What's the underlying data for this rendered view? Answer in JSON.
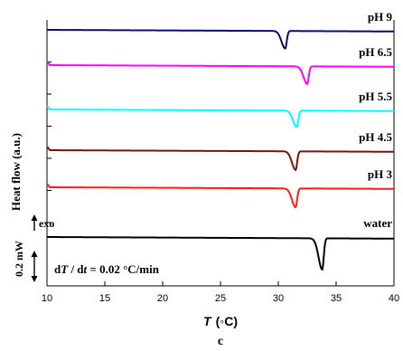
{
  "chart_data": {
    "type": "line",
    "panel_label": "c",
    "xlabel_italic": "T",
    "xlabel_unit": "(◦C)",
    "ylabel": "Heat flow (a.u.)",
    "xlim": [
      10,
      40
    ],
    "x_ticks": [
      "10",
      "15",
      "20",
      "25",
      "30",
      "35",
      "40"
    ],
    "exo_label": "exo",
    "scale_bar_label": "0.2 mW",
    "rate_annotation": {
      "d1": "d",
      "T": "T",
      "slash": " / d",
      "t": "t",
      "rest": " = 0.02 °C/min"
    },
    "series": [
      {
        "name": "pH 9",
        "color": "#0b0b6e",
        "peak_T": 30.6,
        "peak_depth": 0.9
      },
      {
        "name": "pH 6.5",
        "color": "#ff00ff",
        "peak_T": 32.5,
        "peak_depth": 0.9
      },
      {
        "name": "pH 5.5",
        "color": "#00ffff",
        "peak_T": 31.6,
        "peak_depth": 0.85
      },
      {
        "name": "pH 4.5",
        "color": "#7a1010",
        "peak_T": 31.5,
        "peak_depth": 0.95
      },
      {
        "name": "pH 3",
        "color": "#ff1a1a",
        "peak_T": 31.5,
        "peak_depth": 1.05
      },
      {
        "name": "water",
        "color": "#000000",
        "peak_T": 33.8,
        "peak_depth": 1.2
      }
    ]
  }
}
